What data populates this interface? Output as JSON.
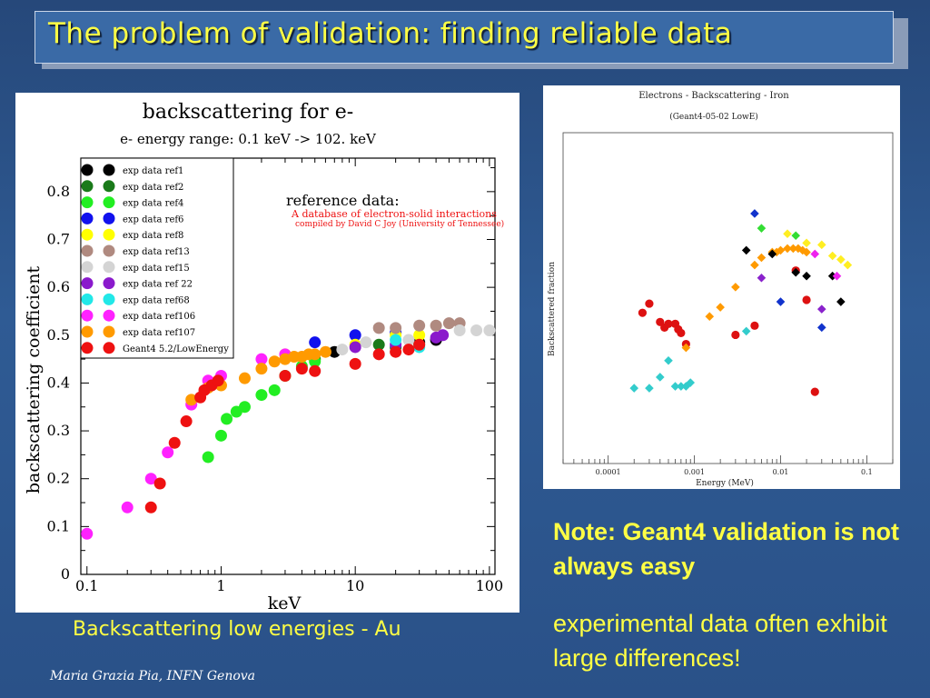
{
  "slide": {
    "title": "The problem of validation: finding reliable data",
    "caption": "Backscattering low energies - Au",
    "note_heading": "Note: Geant4 validation is not always easy",
    "note_body": "experimental data often exhibit large differences!",
    "footer": "Maria Grazia Pia, INFN Genova"
  },
  "chart_data": [
    {
      "type": "scatter",
      "title": "backscattering for e-",
      "subtitle": "e- energy range: 0.1 keV -> 102. keV",
      "xlabel": "keV",
      "ylabel": "backscattering coefficient",
      "xscale": "log",
      "xlim": [
        0.09,
        110
      ],
      "ylim": [
        0,
        0.87
      ],
      "xticks": [
        0.1,
        1,
        10,
        100
      ],
      "xtick_labels": [
        "0.1",
        "1",
        "10",
        "100"
      ],
      "yticks": [
        0,
        0.1,
        0.2,
        0.3,
        0.4,
        0.5,
        0.6,
        0.7,
        0.8
      ],
      "ytick_labels": [
        "0",
        "0.1",
        "0.2",
        "0.3",
        "0.4",
        "0.5",
        "0.6",
        "0.7",
        "0.8"
      ],
      "legend_position": "top-left",
      "annotation": {
        "heading": "reference data:",
        "line1": "A database of electron-solid interactions",
        "line2": "compiled by David C Joy (University of Tennessee)"
      },
      "series": [
        {
          "name": "exp data ref1",
          "color": "#000000",
          "points": [
            [
              7,
              0.465
            ],
            [
              30,
              0.485
            ],
            [
              40,
              0.49
            ]
          ]
        },
        {
          "name": "exp data ref2",
          "color": "#1a7a1a",
          "points": [
            [
              5,
              0.45
            ],
            [
              15,
              0.48
            ],
            [
              20,
              0.475
            ],
            [
              30,
              0.48
            ]
          ]
        },
        {
          "name": "exp data ref4",
          "color": "#22ee22",
          "points": [
            [
              0.8,
              0.245
            ],
            [
              1,
              0.29
            ],
            [
              1.1,
              0.325
            ],
            [
              1.3,
              0.34
            ],
            [
              1.5,
              0.35
            ],
            [
              2,
              0.375
            ],
            [
              2.5,
              0.385
            ],
            [
              3,
              0.415
            ],
            [
              4,
              0.435
            ],
            [
              5,
              0.445
            ]
          ]
        },
        {
          "name": "exp data ref6",
          "color": "#1111ee",
          "points": [
            [
              5,
              0.485
            ],
            [
              10,
              0.5
            ],
            [
              20,
              0.505
            ]
          ]
        },
        {
          "name": "exp data ref8",
          "color": "#ffff00",
          "points": [
            [
              3,
              0.46
            ],
            [
              10,
              0.48
            ],
            [
              20,
              0.5
            ],
            [
              30,
              0.5
            ]
          ]
        },
        {
          "name": "exp data ref13",
          "color": "#b08a80",
          "points": [
            [
              15,
              0.515
            ],
            [
              20,
              0.515
            ],
            [
              30,
              0.52
            ],
            [
              40,
              0.52
            ],
            [
              50,
              0.525
            ],
            [
              60,
              0.525
            ]
          ]
        },
        {
          "name": "exp data ref15",
          "color": "#d4d4d4",
          "points": [
            [
              8,
              0.47
            ],
            [
              12,
              0.485
            ],
            [
              25,
              0.49
            ],
            [
              60,
              0.51
            ],
            [
              80,
              0.51
            ],
            [
              100,
              0.51
            ]
          ]
        },
        {
          "name": "exp data ref 22",
          "color": "#8a1acc",
          "points": [
            [
              10,
              0.475
            ],
            [
              20,
              0.48
            ],
            [
              40,
              0.495
            ],
            [
              45,
              0.5
            ]
          ]
        },
        {
          "name": "exp data ref68",
          "color": "#22e8e8",
          "points": [
            [
              20,
              0.49
            ],
            [
              30,
              0.475
            ]
          ]
        },
        {
          "name": "exp data ref106",
          "color": "#ff22ff",
          "points": [
            [
              0.1,
              0.085
            ],
            [
              0.2,
              0.14
            ],
            [
              0.3,
              0.2
            ],
            [
              0.4,
              0.255
            ],
            [
              0.6,
              0.355
            ],
            [
              0.8,
              0.405
            ],
            [
              1,
              0.415
            ],
            [
              2,
              0.45
            ],
            [
              3,
              0.46
            ]
          ]
        },
        {
          "name": "exp data ref107",
          "color": "#ff9a00",
          "points": [
            [
              0.6,
              0.365
            ],
            [
              0.8,
              0.39
            ],
            [
              1,
              0.395
            ],
            [
              1.5,
              0.41
            ],
            [
              2,
              0.43
            ],
            [
              2.5,
              0.445
            ],
            [
              3,
              0.45
            ],
            [
              3.5,
              0.455
            ],
            [
              4,
              0.455
            ],
            [
              4.5,
              0.46
            ],
            [
              5,
              0.46
            ],
            [
              6,
              0.465
            ]
          ]
        },
        {
          "name": "Geant4 5.2/LowEnergy",
          "color": "#ee1111",
          "points": [
            [
              0.3,
              0.14
            ],
            [
              0.35,
              0.19
            ],
            [
              0.45,
              0.275
            ],
            [
              0.55,
              0.32
            ],
            [
              0.7,
              0.37
            ],
            [
              0.75,
              0.385
            ],
            [
              0.85,
              0.395
            ],
            [
              0.95,
              0.405
            ],
            [
              3,
              0.415
            ],
            [
              4,
              0.43
            ],
            [
              5,
              0.425
            ],
            [
              10,
              0.44
            ],
            [
              15,
              0.46
            ],
            [
              20,
              0.465
            ],
            [
              25,
              0.47
            ],
            [
              30,
              0.48
            ]
          ]
        }
      ]
    },
    {
      "type": "scatter",
      "title": "Electrons - Backscattering - Iron",
      "subtitle": "(Geant4-05-02 LowE)",
      "xlabel": "Energy (MeV)",
      "ylabel": "Backscattered fraction",
      "xscale": "log",
      "xlim": [
        3e-05,
        0.2
      ],
      "ylim": [
        0,
        0.9
      ],
      "xticks": [
        0.0001,
        0.001,
        0.01,
        0.1
      ],
      "xtick_labels": [
        "0.0001",
        "0.001",
        "0.01",
        "0.1"
      ],
      "series": [
        {
          "color": "#dd1111",
          "marker": "circle",
          "points": [
            [
              0.00025,
              0.41
            ],
            [
              0.0003,
              0.435
            ],
            [
              0.0004,
              0.385
            ],
            [
              0.00045,
              0.37
            ],
            [
              0.0005,
              0.38
            ],
            [
              0.0006,
              0.38
            ],
            [
              0.00065,
              0.365
            ],
            [
              0.0007,
              0.355
            ],
            [
              0.0008,
              0.325
            ],
            [
              0.003,
              0.35
            ],
            [
              0.005,
              0.375
            ],
            [
              0.015,
              0.525
            ],
            [
              0.02,
              0.445
            ],
            [
              0.025,
              0.195
            ]
          ]
        },
        {
          "color": "#33cccc",
          "marker": "diamond",
          "points": [
            [
              0.0002,
              0.205
            ],
            [
              0.0003,
              0.205
            ],
            [
              0.0004,
              0.235
            ],
            [
              0.0005,
              0.28
            ],
            [
              0.0006,
              0.21
            ],
            [
              0.0007,
              0.21
            ],
            [
              0.0008,
              0.21
            ],
            [
              0.0009,
              0.22
            ],
            [
              0.004,
              0.36
            ]
          ]
        },
        {
          "color": "#ff9a00",
          "marker": "diamond",
          "points": [
            [
              0.0008,
              0.315
            ],
            [
              0.0015,
              0.4
            ],
            [
              0.002,
              0.425
            ],
            [
              0.003,
              0.48
            ],
            [
              0.005,
              0.54
            ],
            [
              0.006,
              0.56
            ],
            [
              0.008,
              0.575
            ],
            [
              0.009,
              0.575
            ],
            [
              0.01,
              0.58
            ],
            [
              0.012,
              0.585
            ],
            [
              0.014,
              0.585
            ],
            [
              0.016,
              0.585
            ],
            [
              0.018,
              0.58
            ],
            [
              0.02,
              0.575
            ]
          ]
        },
        {
          "color": "#000000",
          "marker": "diamond",
          "points": [
            [
              0.004,
              0.58
            ],
            [
              0.008,
              0.57
            ],
            [
              0.015,
              0.52
            ],
            [
              0.02,
              0.51
            ],
            [
              0.04,
              0.51
            ],
            [
              0.05,
              0.44
            ]
          ]
        },
        {
          "color": "#1133cc",
          "marker": "diamond",
          "points": [
            [
              0.005,
              0.68
            ],
            [
              0.01,
              0.44
            ],
            [
              0.03,
              0.37
            ]
          ]
        },
        {
          "color": "#ffee22",
          "marker": "diamond",
          "points": [
            [
              0.012,
              0.625
            ],
            [
              0.02,
              0.6
            ],
            [
              0.03,
              0.595
            ],
            [
              0.04,
              0.565
            ],
            [
              0.05,
              0.555
            ],
            [
              0.06,
              0.54
            ]
          ]
        },
        {
          "color": "#33dd33",
          "marker": "diamond",
          "points": [
            [
              0.006,
              0.64
            ],
            [
              0.015,
              0.62
            ]
          ]
        },
        {
          "color": "#8a22cc",
          "marker": "diamond",
          "points": [
            [
              0.006,
              0.505
            ],
            [
              0.03,
              0.42
            ]
          ]
        },
        {
          "color": "#ee22ee",
          "marker": "diamond",
          "points": [
            [
              0.025,
              0.57
            ],
            [
              0.045,
              0.51
            ]
          ]
        }
      ]
    }
  ]
}
